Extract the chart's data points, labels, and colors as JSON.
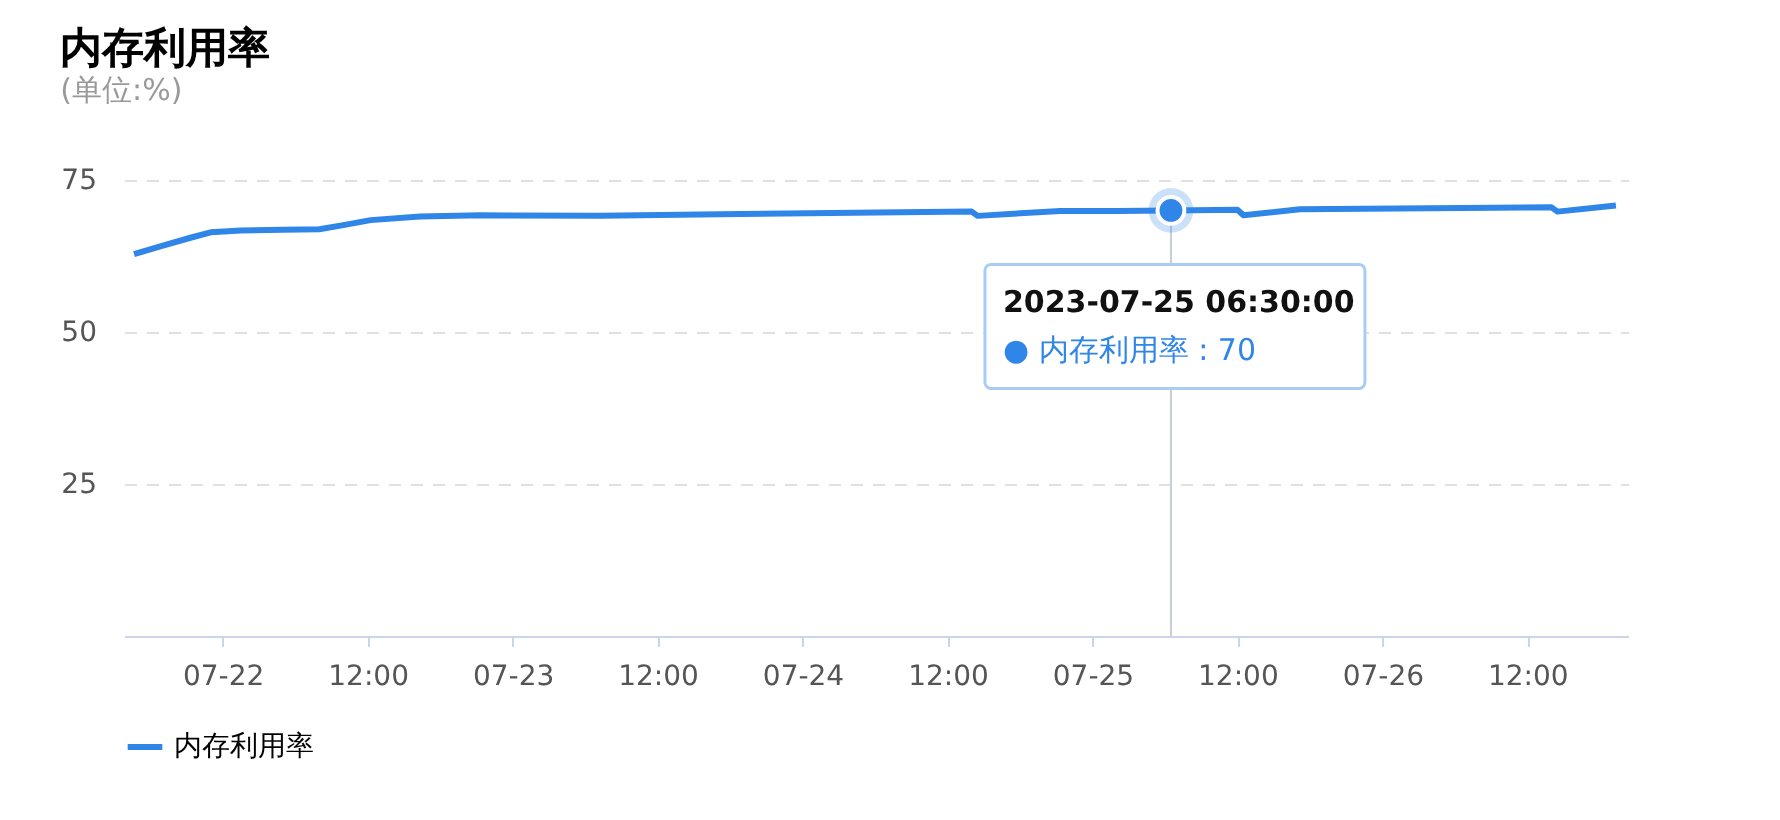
{
  "chart_data": {
    "type": "line",
    "title": "内存利用率",
    "subtitle": "(单位:%)",
    "x": [
      "2023-07-21T16:40",
      "2023-07-21T18:50",
      "2023-07-21T21:20",
      "2023-07-21T23:00",
      "2023-07-22T01:30",
      "2023-07-22T05:00",
      "2023-07-22T08:00",
      "2023-07-22T09:45",
      "2023-07-22T12:15",
      "2023-07-22T16:20",
      "2023-07-22T21:20",
      "2023-07-23T07:15",
      "2023-07-23T18:50",
      "2023-07-24T08:10",
      "2023-07-24T14:00",
      "2023-07-24T14:30",
      "2023-07-24T21:20",
      "2023-07-25T02:00",
      "2023-07-25T06:30",
      "2023-07-25T12:00",
      "2023-07-25T12:30",
      "2023-07-25T17:10",
      "2023-07-26T06:30",
      "2023-07-26T14:00",
      "2023-07-26T14:30",
      "2023-07-26T19:20"
    ],
    "series": [
      {
        "name": "内存利用率",
        "color": "#2f86e8",
        "values": [
          62.8,
          64.1,
          65.5,
          66.4,
          66.7,
          66.8,
          66.9,
          67.5,
          68.4,
          69.0,
          69.2,
          69.1,
          69.4,
          69.7,
          69.8,
          69.1,
          69.9,
          69.9,
          70,
          70.1,
          69.2,
          70.2,
          70.4,
          70.5,
          69.8,
          70.8
        ]
      }
    ],
    "xlim": [
      "2023-07-21T15:50",
      "2023-07-26T20:20"
    ],
    "xticks": [
      {
        "value": "2023-07-22",
        "label": "07-22"
      },
      {
        "value": "2023-07-22T12:00",
        "label": "12:00"
      },
      {
        "value": "2023-07-23",
        "label": "07-23"
      },
      {
        "value": "2023-07-23T12:00",
        "label": "12:00"
      },
      {
        "value": "2023-07-24",
        "label": "07-24"
      },
      {
        "value": "2023-07-24T12:00",
        "label": "12:00"
      },
      {
        "value": "2023-07-25",
        "label": "07-25"
      },
      {
        "value": "2023-07-25T12:00",
        "label": "12:00"
      },
      {
        "value": "2023-07-26",
        "label": "07-26"
      },
      {
        "value": "2023-07-26T12:00",
        "label": "12:00"
      }
    ],
    "ylim": [
      0,
      75
    ],
    "yticks": [
      25,
      50,
      75
    ],
    "grid": "y",
    "legend": "bottom",
    "marker": "none",
    "line_style": "solid",
    "annotations": [
      {
        "text": "2023-07-25 06:30:00",
        "x": "2023-07-25T06:30",
        "y": 70
      },
      "● 内存利用率 : 70"
    ],
    "ref_lines": [
      {
        "axis": "x",
        "value": "2023-07-25T06:30",
        "color": "#c8cdd6"
      }
    ]
  }
}
